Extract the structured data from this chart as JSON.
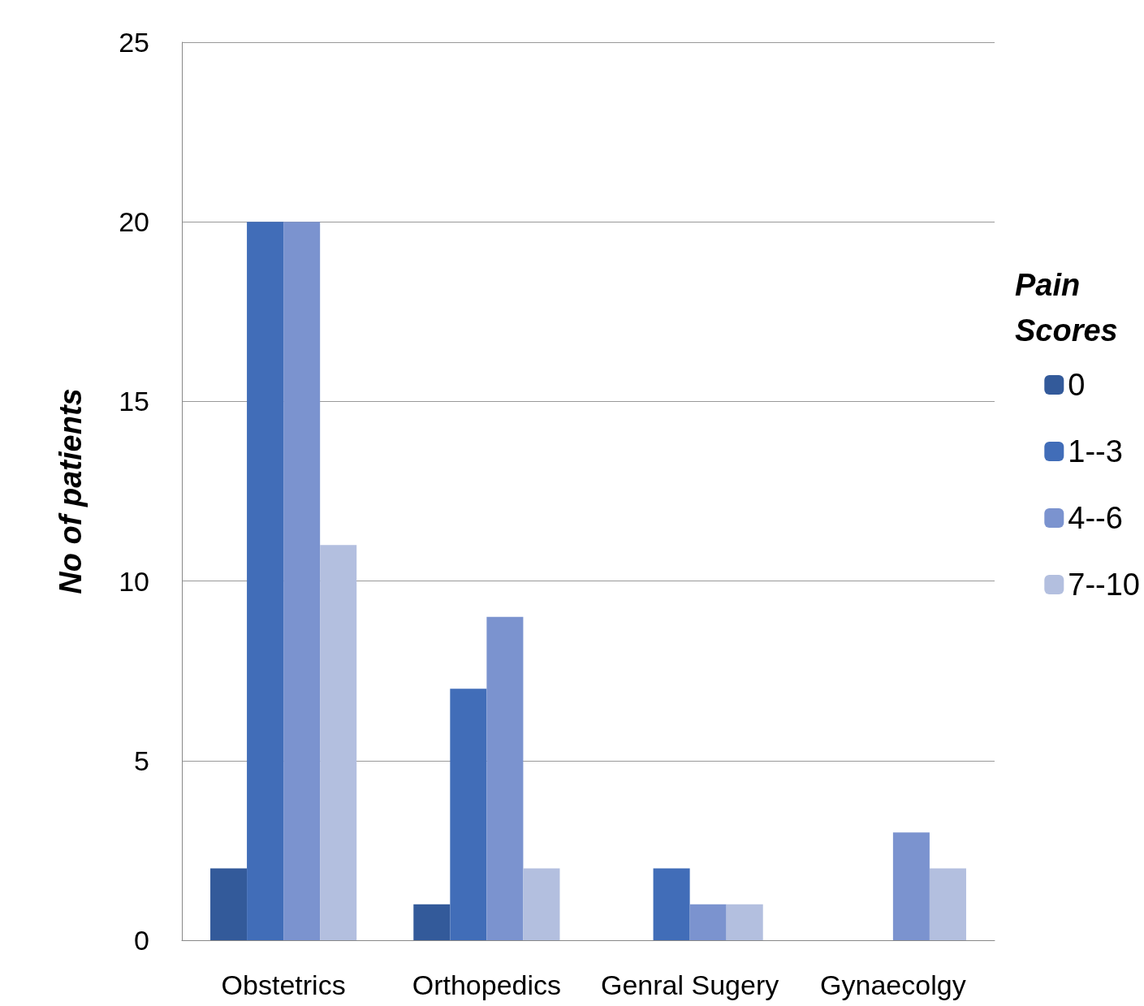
{
  "chart_data": {
    "type": "bar",
    "ylabel": "No of patients",
    "legend_title": "Pain Scores",
    "categories": [
      "Obstetrics",
      "Orthopedics",
      "Genral Sugery",
      "Gynaecolgy"
    ],
    "series": [
      {
        "name": "0",
        "color": "#335a9a",
        "values": [
          2,
          1,
          0,
          0
        ]
      },
      {
        "name": "1--3",
        "color": "#416db8",
        "values": [
          20,
          7,
          2,
          0
        ]
      },
      {
        "name": "4--6",
        "color": "#7b93cf",
        "values": [
          20,
          9,
          1,
          3
        ]
      },
      {
        "name": "7--10",
        "color": "#b3bfdf",
        "values": [
          11,
          2,
          1,
          2
        ]
      }
    ],
    "ylim": [
      0,
      25
    ],
    "yticks": [
      0,
      5,
      10,
      15,
      20,
      25
    ],
    "grid": "y",
    "legend": "right"
  }
}
